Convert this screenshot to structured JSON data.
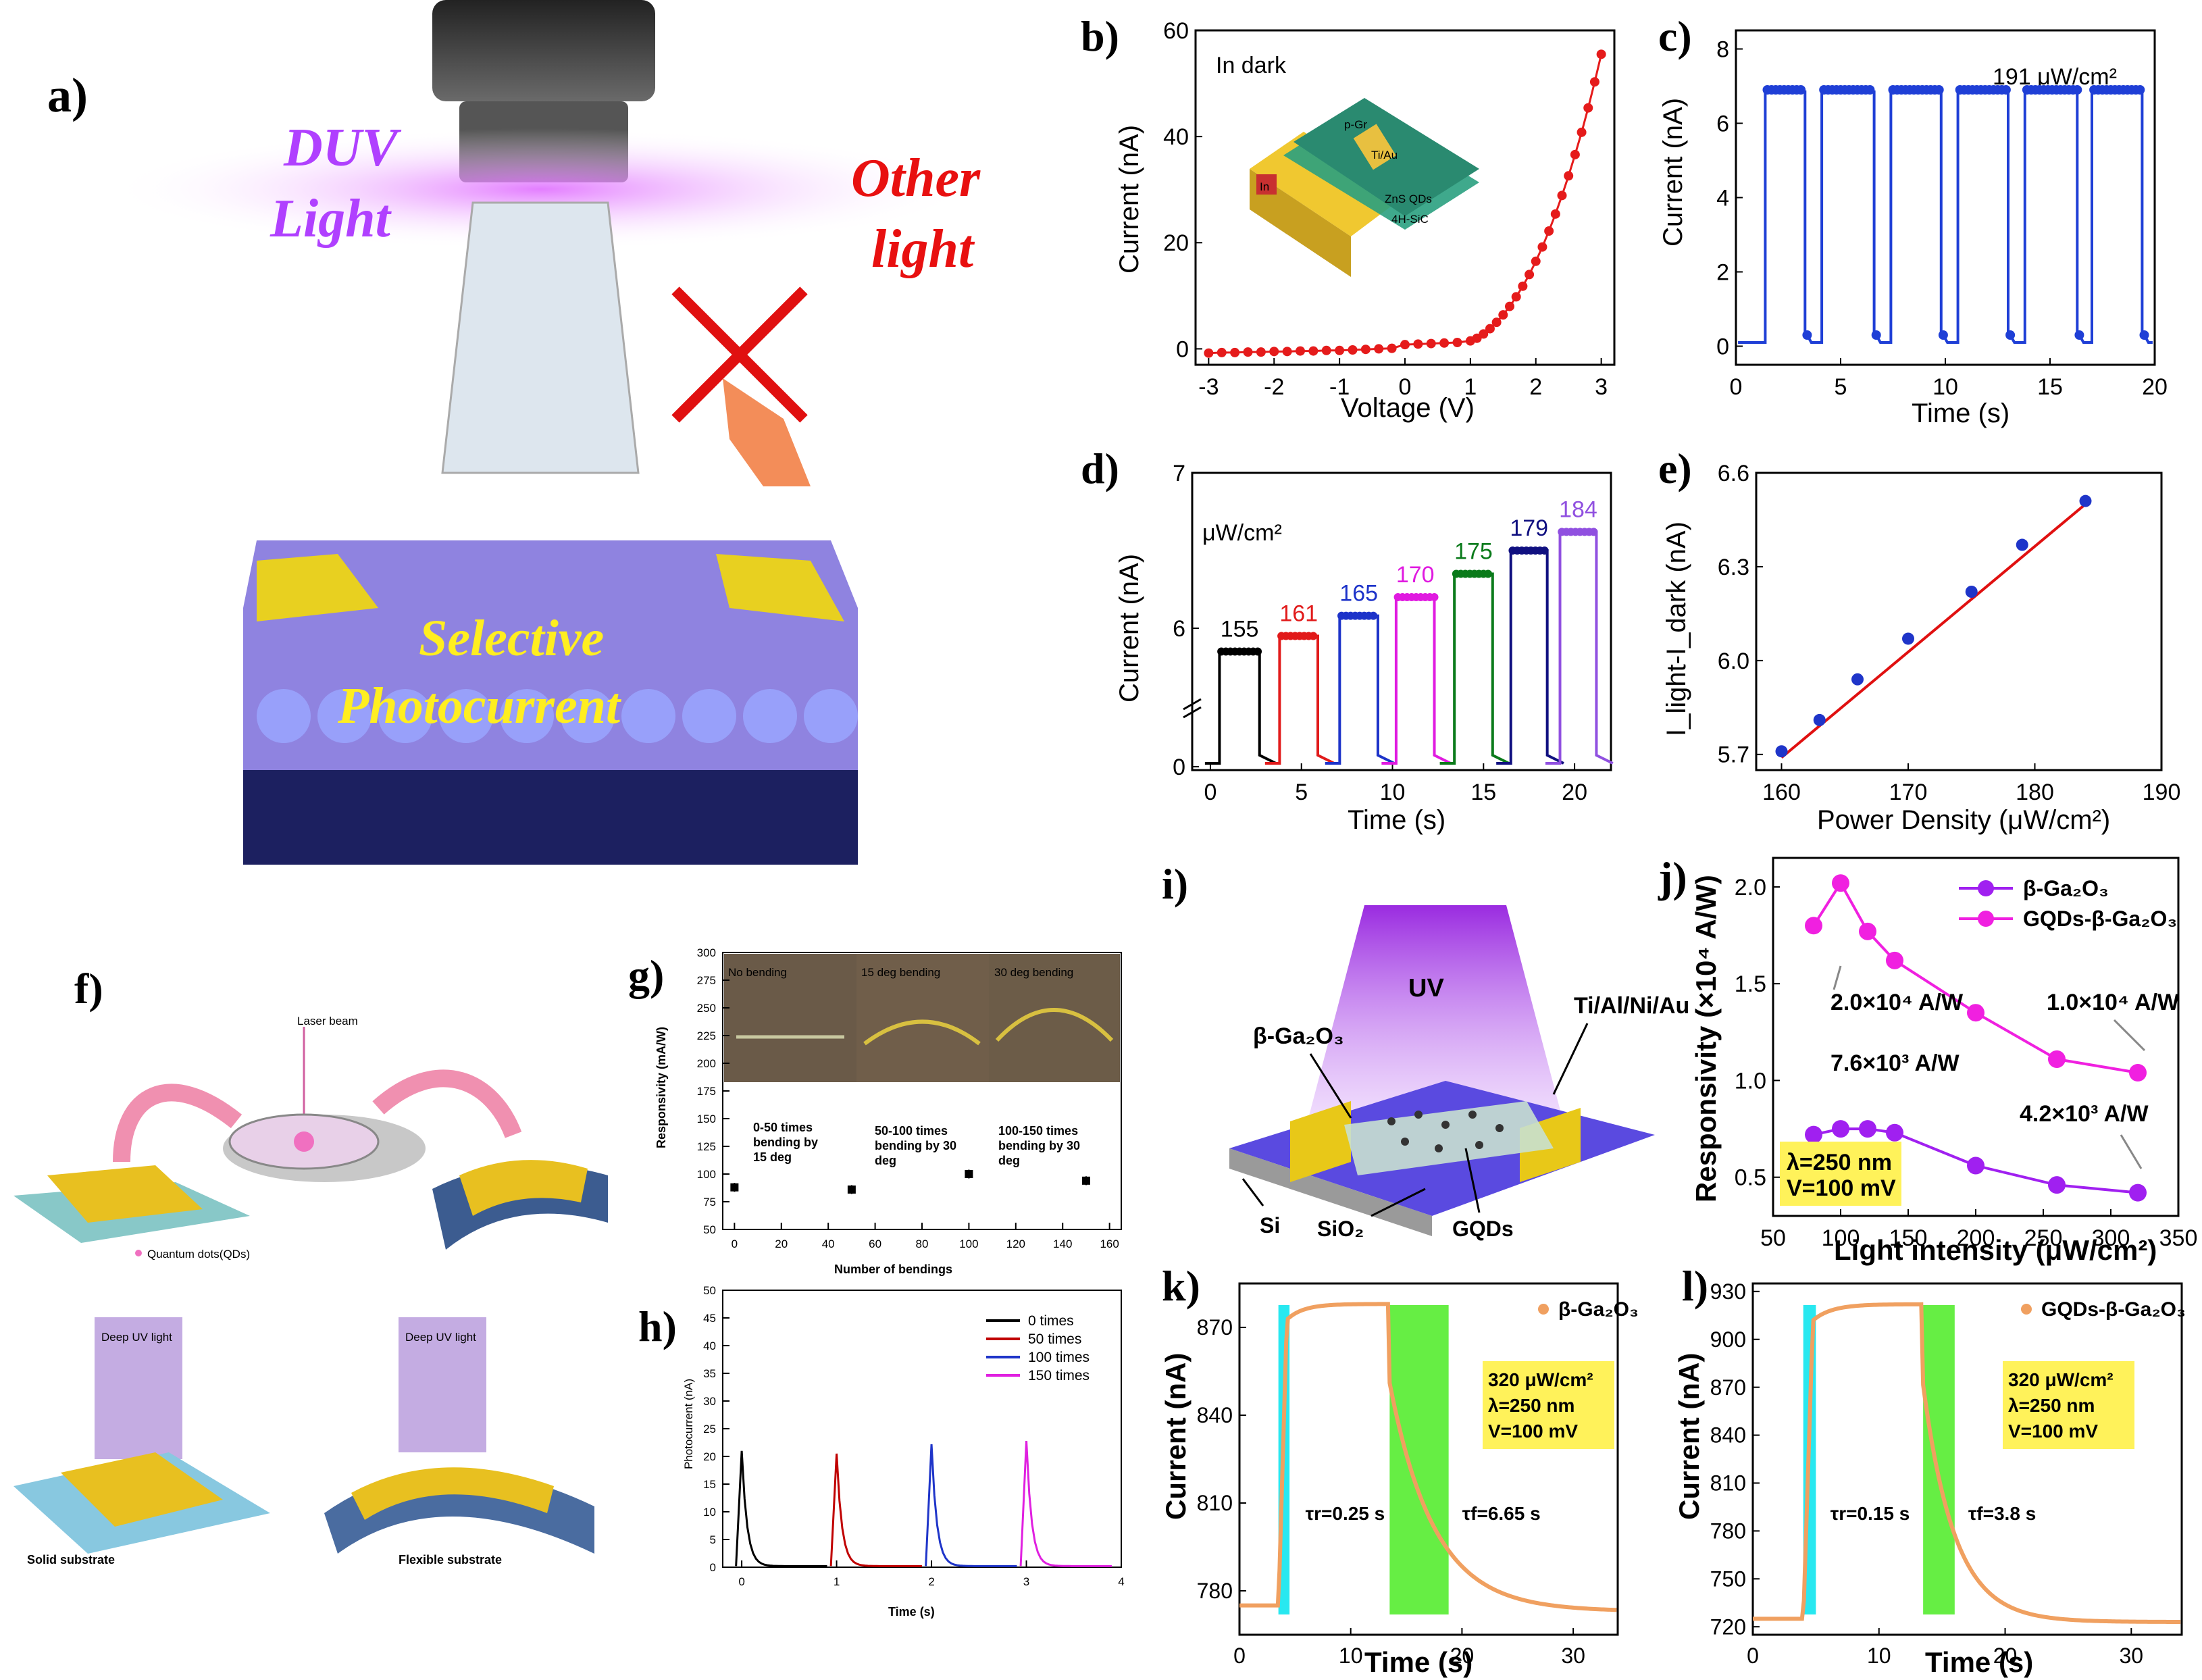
{
  "labels": {
    "a": "a)",
    "b": "b)",
    "c": "c)",
    "d": "d)",
    "e": "e)",
    "f": "f)",
    "g": "g)",
    "h": "h)",
    "i": "i)",
    "j": "j)",
    "k": "k)",
    "l": "l)"
  },
  "panel_a": {
    "duv": "DUV",
    "light": "Light",
    "other1": "Other",
    "other2": "light",
    "sel1": "Selective",
    "sel2": "Photocurrent"
  },
  "panel_f": {
    "laser": "Laser beam",
    "qd": "Quantum dots(QDs)",
    "duv1": "Deep UV light",
    "duv2": "Deep UV light",
    "solid": "Solid substrate",
    "flex": "Flexible substrate"
  },
  "panel_i": {
    "uv": "UV",
    "ga2o3": "β-Ga₂O₃",
    "metal": "Ti/Al/Ni/Au",
    "si": "Si",
    "sio2": "SiO₂",
    "gqds": "GQDs"
  },
  "panel_b_inset": {
    "pgr": "p-Gr",
    "tiau": "Ti/Au",
    "zns": "ZnS QDs",
    "sic": "4H-SiC",
    "in": "In"
  },
  "chart_data": [
    {
      "id": "b",
      "type": "line",
      "title": "",
      "annotation": "In dark",
      "xlabel": "Voltage (V)",
      "ylabel": "Current (nA)",
      "xlim": [
        -3.2,
        3.2
      ],
      "ylim": [
        -3,
        60
      ],
      "xticks": [
        -3,
        -2,
        -1,
        0,
        1,
        2,
        3
      ],
      "yticks": [
        0,
        20,
        40,
        60
      ],
      "x": [
        -3,
        -2.8,
        -2.6,
        -2.4,
        -2.2,
        -2,
        -1.8,
        -1.6,
        -1.4,
        -1.2,
        -1,
        -0.8,
        -0.6,
        -0.4,
        -0.2,
        0,
        0.2,
        0.4,
        0.6,
        0.8,
        1,
        1.1,
        1.2,
        1.3,
        1.4,
        1.5,
        1.6,
        1.7,
        1.8,
        1.9,
        2,
        2.1,
        2.2,
        2.3,
        2.4,
        2.5,
        2.6,
        2.7,
        2.8,
        2.9,
        3
      ],
      "y": [
        -0.8,
        -0.7,
        -0.7,
        -0.6,
        -0.6,
        -0.5,
        -0.5,
        -0.4,
        -0.4,
        -0.3,
        -0.3,
        -0.2,
        -0.1,
        0,
        0.1,
        0.8,
        0.9,
        1,
        1.1,
        1.2,
        1.5,
        2,
        2.8,
        3.8,
        5,
        6.4,
        8,
        9.8,
        11.8,
        14,
        16.5,
        19.2,
        22.2,
        25.4,
        28.9,
        32.6,
        36.6,
        40.8,
        45.4,
        50.3,
        55.5
      ]
    },
    {
      "id": "c",
      "type": "line",
      "annotation": "191 μW/cm²",
      "xlabel": "Time (s)",
      "ylabel": "Current (nA)",
      "xlim": [
        0,
        20
      ],
      "ylim": [
        -0.5,
        8.5
      ],
      "xticks": [
        0,
        5,
        10,
        15,
        20
      ],
      "yticks": [
        0,
        2,
        4,
        6,
        8
      ],
      "on_times": [
        [
          1.4,
          3.3
        ],
        [
          4.1,
          6.6
        ],
        [
          7.4,
          9.8
        ],
        [
          10.6,
          13
        ],
        [
          13.8,
          16.3
        ],
        [
          17,
          19.4
        ]
      ],
      "on_value": 6.9,
      "off_value": 0.1
    },
    {
      "id": "d",
      "type": "line",
      "annotation": "μW/cm²",
      "xlabel": "Time (s)",
      "ylabel": "Current (nA)",
      "xlim": [
        -1,
        22
      ],
      "yticks_labels": [
        "0",
        "6",
        "7"
      ],
      "series": [
        {
          "name": "155",
          "color": "#000000",
          "on": [
            0.5,
            2.7
          ],
          "value": 5.85
        },
        {
          "name": "161",
          "color": "#e11a1a",
          "on": [
            3.8,
            5.9
          ],
          "value": 5.95
        },
        {
          "name": "165",
          "color": "#1d33c9",
          "on": [
            7.1,
            9.2
          ],
          "value": 6.08
        },
        {
          "name": "170",
          "color": "#e01ae0",
          "on": [
            10.2,
            12.3
          ],
          "value": 6.2
        },
        {
          "name": "175",
          "color": "#0a7a1a",
          "on": [
            13.4,
            15.5
          ],
          "value": 6.35
        },
        {
          "name": "179",
          "color": "#101080",
          "on": [
            16.5,
            18.5
          ],
          "value": 6.5
        },
        {
          "name": "184",
          "color": "#9050e0",
          "on": [
            19.2,
            21.2
          ],
          "value": 6.62
        }
      ],
      "xticks": [
        0,
        5,
        10,
        15,
        20
      ]
    },
    {
      "id": "e",
      "type": "scatter",
      "xlabel": "Power Density (μW/cm²)",
      "ylabel": "I_light-I_dark (nA)",
      "xlim": [
        158,
        190
      ],
      "ylim": [
        5.65,
        6.6
      ],
      "xticks": [
        160,
        170,
        180,
        190
      ],
      "yticks": [
        5.7,
        6.0,
        6.3,
        6.6
      ],
      "x": [
        160,
        163,
        166,
        170,
        175,
        179,
        184
      ],
      "y": [
        5.71,
        5.81,
        5.94,
        6.07,
        6.22,
        6.37,
        6.51
      ],
      "fit": [
        [
          160,
          5.69
        ],
        [
          184,
          6.5
        ]
      ]
    },
    {
      "id": "g",
      "type": "scatter",
      "xlabel": "Number of bendings",
      "ylabel": "Responsivity (mA/W)",
      "xlim": [
        -5,
        165
      ],
      "ylim": [
        50,
        300
      ],
      "xticks": [
        0,
        20,
        40,
        60,
        80,
        100,
        120,
        140,
        160
      ],
      "yticks": [
        50,
        75,
        100,
        125,
        150,
        175,
        200,
        225,
        250,
        275,
        300
      ],
      "x": [
        0,
        50,
        100,
        150
      ],
      "y": [
        88,
        86,
        100,
        94
      ],
      "photos": [
        "No bending",
        "15 deg bending",
        "30 deg bending"
      ],
      "notes": [
        "0-50 times",
        "bending by",
        "15 deg",
        "50-100 times",
        "bending by 30",
        "deg",
        "100-150 times",
        "bending by 30",
        "deg"
      ]
    },
    {
      "id": "h",
      "type": "line",
      "xlabel": "Time (s)",
      "ylabel": "Photocurrent (nA)",
      "xlim": [
        -0.2,
        4
      ],
      "ylim": [
        0,
        50
      ],
      "xticks": [
        0,
        1,
        2,
        3,
        4
      ],
      "yticks": [
        0,
        5,
        10,
        15,
        20,
        25,
        30,
        35,
        40,
        45,
        50
      ],
      "series": [
        {
          "name": "0 times",
          "color": "#000000",
          "peak_t": 0,
          "peak": 21
        },
        {
          "name": "50 times",
          "color": "#c00000",
          "peak_t": 1,
          "peak": 20.5
        },
        {
          "name": "100 times",
          "color": "#1f35c9",
          "peak_t": 2,
          "peak": 22.2
        },
        {
          "name": "150 times",
          "color": "#e020e0",
          "peak_t": 3,
          "peak": 22.8
        }
      ]
    },
    {
      "id": "j",
      "type": "line",
      "xlabel": "Light intensity (μW/cm²)",
      "ylabel": "Responsivity (×10⁴ A/W)",
      "xlim": [
        50,
        350
      ],
      "ylim": [
        0.3,
        2.15
      ],
      "xticks": [
        50,
        100,
        150,
        200,
        250,
        300,
        350
      ],
      "yticks": [
        0.5,
        1.0,
        1.5,
        2.0
      ],
      "series": [
        {
          "name": "β-Ga₂O₃",
          "color": "#a020f0",
          "x": [
            80,
            100,
            120,
            140,
            200,
            260,
            320
          ],
          "y": [
            0.72,
            0.75,
            0.75,
            0.73,
            0.56,
            0.46,
            0.42
          ]
        },
        {
          "name": "GQDs-β-Ga₂O₃",
          "color": "#f020e0",
          "x": [
            80,
            100,
            120,
            140,
            200,
            260,
            320
          ],
          "y": [
            1.8,
            2.02,
            1.77,
            1.62,
            1.35,
            1.11,
            1.04
          ]
        }
      ],
      "annotations": [
        "2.0×10⁴ A/W",
        "1.0×10⁴ A/W",
        "7.6×10³ A/W",
        "4.2×10³ A/W",
        "λ=250 nm",
        "V=100 mV"
      ]
    },
    {
      "id": "k",
      "type": "line",
      "xlabel": "Time (s)",
      "ylabel": "Current (nA)",
      "legend": "β-Ga₂O₃",
      "xlim": [
        0,
        34
      ],
      "ylim": [
        765,
        885
      ],
      "xticks": [
        0,
        10,
        20,
        30
      ],
      "yticks": [
        780,
        810,
        840,
        870
      ],
      "box": [
        "320 μW/cm²",
        "λ=250 nm",
        "V=100 mV"
      ],
      "tau_r": "τr=0.25 s",
      "tau_f": "τf=6.65 s",
      "rise": [
        3.5,
        4.5
      ],
      "fall": [
        13.5,
        18.8
      ]
    },
    {
      "id": "l",
      "type": "line",
      "xlabel": "Time (s)",
      "ylabel": "Current (nA)",
      "legend": "GQDs-β-Ga₂O₃",
      "xlim": [
        0,
        34
      ],
      "ylim": [
        715,
        935
      ],
      "xticks": [
        0,
        10,
        20,
        30
      ],
      "yticks": [
        720,
        750,
        780,
        810,
        840,
        870,
        900,
        930
      ],
      "box": [
        "320 μW/cm²",
        "λ=250 nm",
        "V=100 mV"
      ],
      "tau_r": "τr=0.15 s",
      "tau_f": "τf=3.8 s",
      "rise": [
        4,
        5
      ],
      "fall": [
        13.5,
        16
      ]
    }
  ],
  "colors": {
    "red": "#e51b1b",
    "blue": "#1f3fd6",
    "magenta": "#f020e0",
    "purple": "#a020f0",
    "orange": "#f0a060",
    "cyan": "#28e8f0",
    "green": "#66ee44",
    "yellowbox": "#fff25a"
  }
}
